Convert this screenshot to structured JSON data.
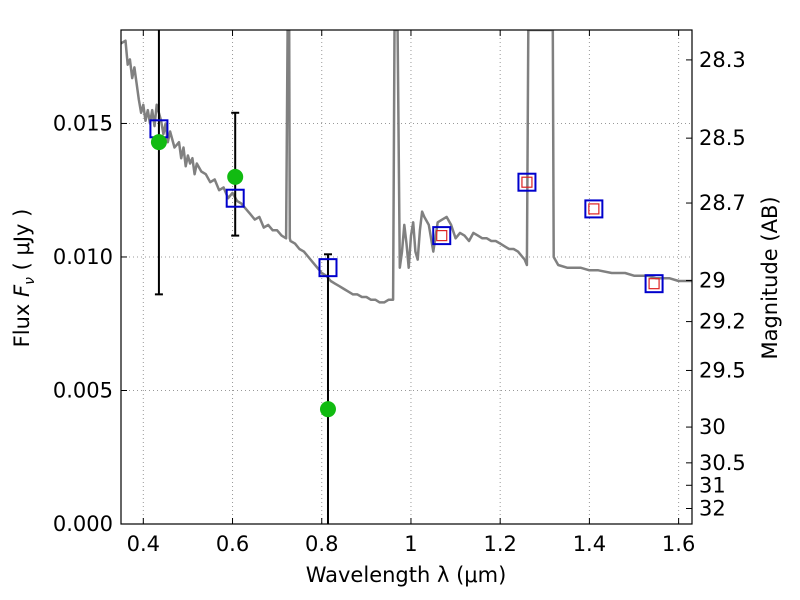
{
  "chart_data": {
    "type": "scatter",
    "xlabel": "Wavelength  λ (μm)",
    "ylabel_prefix": "Flux  ",
    "ylabel_symbol": "F",
    "ylabel_sub": "ν",
    "ylabel_suffix": "  ( μJy )",
    "y2label": "Magnitude (AB)",
    "xlim": [
      0.35,
      1.63
    ],
    "ylim": [
      0.0,
      0.0185
    ],
    "grid": true,
    "x_ticks": [
      0.4,
      0.6,
      0.8,
      1.0,
      1.2,
      1.4,
      1.6
    ],
    "x_tick_labels": [
      "0.4",
      "0.6",
      "0.8",
      "1",
      "1.2",
      "1.4",
      "1.6"
    ],
    "y_ticks": [
      0.0,
      0.005,
      0.01,
      0.015
    ],
    "y_tick_labels": [
      "0.000",
      "0.005",
      "0.010",
      "0.015"
    ],
    "y2_ticks": [
      {
        "flux": 0.01738,
        "label": "28.3"
      },
      {
        "flux": 0.01445,
        "label": "28.5"
      },
      {
        "flux": 0.01202,
        "label": "28.7"
      },
      {
        "flux": 0.00912,
        "label": "29"
      },
      {
        "flux": 0.00758,
        "label": "29.2"
      },
      {
        "flux": 0.00575,
        "label": "29.5"
      },
      {
        "flux": 0.00363,
        "label": "30"
      },
      {
        "flux": 0.00229,
        "label": "30.5"
      },
      {
        "flux": 0.00145,
        "label": "31"
      },
      {
        "flux": 0.00058,
        "label": "32"
      }
    ],
    "colors": {
      "model": "#808080",
      "observed": "#11bb11",
      "model_band": "#0000cc",
      "model_band_inner": "#dd2222",
      "errorbar": "#000000",
      "grid": "#999999"
    },
    "series": [
      {
        "kind": "model_spectrum",
        "x": [
          0.35,
          0.36,
          0.365,
          0.37,
          0.375,
          0.38,
          0.385,
          0.39,
          0.395,
          0.4,
          0.405,
          0.41,
          0.415,
          0.42,
          0.425,
          0.43,
          0.435,
          0.44,
          0.445,
          0.45,
          0.455,
          0.46,
          0.47,
          0.48,
          0.485,
          0.49,
          0.495,
          0.5,
          0.505,
          0.51,
          0.515,
          0.52,
          0.53,
          0.54,
          0.55,
          0.56,
          0.57,
          0.58,
          0.59,
          0.6,
          0.61,
          0.62,
          0.63,
          0.64,
          0.65,
          0.66,
          0.67,
          0.68,
          0.69,
          0.7,
          0.71,
          0.72,
          0.7235,
          0.725,
          0.727,
          0.7285,
          0.73,
          0.74,
          0.75,
          0.76,
          0.77,
          0.78,
          0.79,
          0.8,
          0.81,
          0.82,
          0.83,
          0.84,
          0.85,
          0.86,
          0.87,
          0.88,
          0.89,
          0.9,
          0.91,
          0.92,
          0.93,
          0.94,
          0.95,
          0.96,
          0.963,
          0.965,
          0.968,
          0.97,
          0.975,
          0.98,
          0.985,
          0.99,
          0.995,
          1.0,
          1.005,
          1.01,
          1.015,
          1.02,
          1.025,
          1.03,
          1.04,
          1.05,
          1.06,
          1.07,
          1.08,
          1.09,
          1.1,
          1.11,
          1.12,
          1.13,
          1.14,
          1.15,
          1.16,
          1.17,
          1.18,
          1.19,
          1.2,
          1.21,
          1.22,
          1.23,
          1.24,
          1.25,
          1.255,
          1.26,
          1.263,
          1.265,
          1.268,
          1.27,
          1.31,
          1.312,
          1.315,
          1.318,
          1.32,
          1.33,
          1.35,
          1.38,
          1.4,
          1.42,
          1.45,
          1.48,
          1.5,
          1.53,
          1.55,
          1.58,
          1.6,
          1.63
        ],
        "y": [
          0.018,
          0.0181,
          0.0172,
          0.0174,
          0.0167,
          0.0171,
          0.0165,
          0.0159,
          0.0154,
          0.0157,
          0.0151,
          0.0155,
          0.015,
          0.0155,
          0.0149,
          0.0157,
          0.0154,
          0.0151,
          0.0146,
          0.015,
          0.0143,
          0.0147,
          0.0141,
          0.0143,
          0.0137,
          0.0141,
          0.0134,
          0.0138,
          0.0135,
          0.0137,
          0.0131,
          0.0135,
          0.0132,
          0.0131,
          0.0128,
          0.0129,
          0.0125,
          0.0126,
          0.0122,
          0.0124,
          0.0121,
          0.012,
          0.0118,
          0.0116,
          0.0114,
          0.0115,
          0.0111,
          0.0112,
          0.011,
          0.011,
          0.0108,
          0.0107,
          0.0185,
          0.0185,
          0.0185,
          0.0107,
          0.0106,
          0.0105,
          0.0103,
          0.0102,
          0.01,
          0.0098,
          0.0096,
          0.0094,
          0.0093,
          0.0091,
          0.009,
          0.0089,
          0.0088,
          0.0087,
          0.0086,
          0.0086,
          0.0085,
          0.0085,
          0.0084,
          0.0084,
          0.0083,
          0.0083,
          0.0084,
          0.0084,
          0.0185,
          0.0185,
          0.0185,
          0.0185,
          0.0096,
          0.0102,
          0.0112,
          0.0105,
          0.0096,
          0.0108,
          0.0113,
          0.0102,
          0.0099,
          0.011,
          0.0117,
          0.0115,
          0.0112,
          0.0102,
          0.0113,
          0.0114,
          0.0115,
          0.0112,
          0.0107,
          0.0109,
          0.0108,
          0.0106,
          0.0109,
          0.0108,
          0.0107,
          0.0107,
          0.0106,
          0.0106,
          0.0105,
          0.0104,
          0.0103,
          0.0103,
          0.0102,
          0.01,
          0.0099,
          0.0097,
          0.0185,
          0.0185,
          0.0185,
          0.0185,
          0.0185,
          0.0185,
          0.0185,
          0.0185,
          0.01,
          0.0097,
          0.0096,
          0.0096,
          0.0095,
          0.0095,
          0.0094,
          0.0094,
          0.0093,
          0.0093,
          0.0092,
          0.0092,
          0.0091,
          0.0091
        ]
      },
      {
        "kind": "model_bands",
        "x": [
          0.435,
          0.606,
          0.814,
          1.069,
          1.26,
          1.41,
          1.545
        ],
        "y": [
          0.0148,
          0.0122,
          0.0096,
          0.0108,
          0.0128,
          0.0118,
          0.009
        ],
        "inner": [
          false,
          false,
          false,
          true,
          true,
          true,
          true
        ]
      },
      {
        "kind": "observed",
        "x": [
          0.435,
          0.606,
          0.814
        ],
        "y": [
          0.0143,
          0.013,
          0.0043
        ],
        "err_low": [
          0.0086,
          0.0108,
          0.0
        ],
        "err_high": [
          0.0185,
          0.0154,
          0.0101
        ]
      }
    ]
  }
}
